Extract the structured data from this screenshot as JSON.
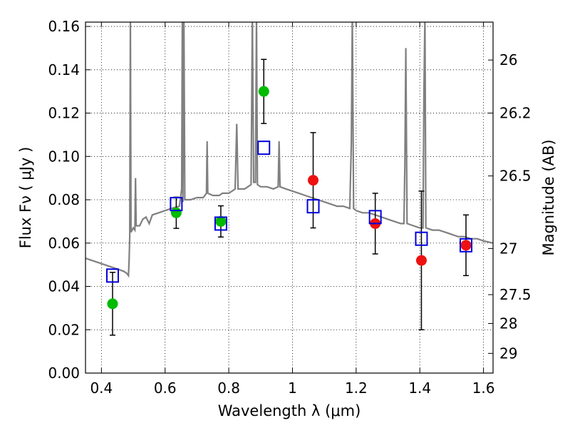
{
  "chart_data": {
    "type": "scatter",
    "title": "",
    "xlabel": "Wavelength  λ (μm)",
    "ylabel": "Flux  Fν  ( μJy )",
    "y2label": "Magnitude (AB)",
    "xlim": [
      0.35,
      1.63
    ],
    "ylim": [
      0.0,
      0.162
    ],
    "grid": true,
    "x_ticks": [
      0.4,
      0.6,
      0.8,
      1.0,
      1.2,
      1.4,
      1.6
    ],
    "x_tick_labels": [
      "0.4",
      "0.6",
      "0.8",
      "1",
      "1.2",
      "1.4",
      "1.6"
    ],
    "y_ticks": [
      0.0,
      0.02,
      0.04,
      0.06,
      0.08,
      0.1,
      0.12,
      0.14,
      0.16
    ],
    "y_tick_labels": [
      "0.00",
      "0.02",
      "0.04",
      "0.06",
      "0.08",
      "0.10",
      "0.12",
      "0.14",
      "0.16"
    ],
    "y2_ticks": [
      {
        "label": "26",
        "flux": 0.1445
      },
      {
        "label": "26.2",
        "flux": 0.12
      },
      {
        "label": "26.5",
        "flux": 0.091
      },
      {
        "label": "27",
        "flux": 0.0575
      },
      {
        "label": "27.5",
        "flux": 0.0362
      },
      {
        "label": "28",
        "flux": 0.0229
      },
      {
        "label": "29",
        "flux": 0.0091
      }
    ],
    "colors": {
      "spectrum": "#808080",
      "green": "#00bb00",
      "red": "#ee1111",
      "model": "#0000dd",
      "errorbar": "#000000"
    },
    "series": [
      {
        "marker": "circle-green",
        "points": [
          {
            "x": 0.435,
            "y": 0.032,
            "err": 0.0145
          },
          {
            "x": 0.635,
            "y": 0.074,
            "err": 0.0072
          },
          {
            "x": 0.775,
            "y": 0.07,
            "err": 0.0072
          },
          {
            "x": 0.91,
            "y": 0.13,
            "err": 0.0148
          }
        ]
      },
      {
        "marker": "circle-red",
        "points": [
          {
            "x": 1.065,
            "y": 0.089,
            "err": 0.022
          },
          {
            "x": 1.26,
            "y": 0.069,
            "err": 0.014
          },
          {
            "x": 1.405,
            "y": 0.052,
            "err": 0.032
          },
          {
            "x": 1.545,
            "y": 0.059,
            "err": 0.014
          }
        ]
      },
      {
        "marker": "square-open-blue",
        "points": [
          {
            "x": 0.435,
            "y": 0.045
          },
          {
            "x": 0.635,
            "y": 0.078
          },
          {
            "x": 0.775,
            "y": 0.069
          },
          {
            "x": 0.91,
            "y": 0.104
          },
          {
            "x": 1.065,
            "y": 0.077
          },
          {
            "x": 1.26,
            "y": 0.072
          },
          {
            "x": 1.405,
            "y": 0.062
          },
          {
            "x": 1.545,
            "y": 0.059
          }
        ]
      }
    ],
    "model_spectrum": [
      [
        0.35,
        0.053
      ],
      [
        0.37,
        0.052
      ],
      [
        0.39,
        0.051
      ],
      [
        0.41,
        0.05
      ],
      [
        0.43,
        0.049
      ],
      [
        0.45,
        0.048
      ],
      [
        0.47,
        0.047
      ],
      [
        0.48,
        0.046
      ],
      [
        0.485,
        0.045
      ],
      [
        0.487,
        0.052
      ],
      [
        0.489,
        0.063
      ],
      [
        0.491,
        0.165
      ],
      [
        0.493,
        0.065
      ],
      [
        0.5,
        0.067
      ],
      [
        0.505,
        0.066
      ],
      [
        0.507,
        0.09
      ],
      [
        0.509,
        0.068
      ],
      [
        0.52,
        0.068
      ],
      [
        0.53,
        0.071
      ],
      [
        0.54,
        0.072
      ],
      [
        0.55,
        0.069
      ],
      [
        0.56,
        0.073
      ],
      [
        0.58,
        0.074
      ],
      [
        0.6,
        0.075
      ],
      [
        0.62,
        0.076
      ],
      [
        0.645,
        0.077
      ],
      [
        0.652,
        0.085
      ],
      [
        0.654,
        0.165
      ],
      [
        0.656,
        0.079
      ],
      [
        0.659,
        0.165
      ],
      [
        0.662,
        0.08
      ],
      [
        0.68,
        0.08
      ],
      [
        0.7,
        0.081
      ],
      [
        0.72,
        0.081
      ],
      [
        0.73,
        0.083
      ],
      [
        0.732,
        0.107
      ],
      [
        0.734,
        0.083
      ],
      [
        0.75,
        0.082
      ],
      [
        0.77,
        0.082
      ],
      [
        0.78,
        0.083
      ],
      [
        0.8,
        0.083
      ],
      [
        0.81,
        0.084
      ],
      [
        0.82,
        0.085
      ],
      [
        0.825,
        0.115
      ],
      [
        0.829,
        0.085
      ],
      [
        0.85,
        0.085
      ],
      [
        0.86,
        0.086
      ],
      [
        0.87,
        0.087
      ],
      [
        0.874,
        0.165
      ],
      [
        0.878,
        0.088
      ],
      [
        0.884,
        0.088
      ],
      [
        0.887,
        0.165
      ],
      [
        0.89,
        0.087
      ],
      [
        0.9,
        0.086
      ],
      [
        0.92,
        0.086
      ],
      [
        0.94,
        0.085
      ],
      [
        0.955,
        0.086
      ],
      [
        0.958,
        0.107
      ],
      [
        0.961,
        0.086
      ],
      [
        0.98,
        0.085
      ],
      [
        1.0,
        0.084
      ],
      [
        1.02,
        0.083
      ],
      [
        1.04,
        0.082
      ],
      [
        1.06,
        0.081
      ],
      [
        1.08,
        0.08
      ],
      [
        1.1,
        0.079
      ],
      [
        1.12,
        0.078
      ],
      [
        1.14,
        0.077
      ],
      [
        1.16,
        0.077
      ],
      [
        1.18,
        0.076
      ],
      [
        1.185,
        0.106
      ],
      [
        1.188,
        0.165
      ],
      [
        1.192,
        0.076
      ],
      [
        1.2,
        0.075
      ],
      [
        1.22,
        0.074
      ],
      [
        1.24,
        0.074
      ],
      [
        1.26,
        0.073
      ],
      [
        1.28,
        0.072
      ],
      [
        1.3,
        0.071
      ],
      [
        1.32,
        0.07
      ],
      [
        1.34,
        0.069
      ],
      [
        1.35,
        0.069
      ],
      [
        1.353,
        0.095
      ],
      [
        1.356,
        0.15
      ],
      [
        1.36,
        0.069
      ],
      [
        1.38,
        0.068
      ],
      [
        1.4,
        0.067
      ],
      [
        1.41,
        0.067
      ],
      [
        1.413,
        0.13
      ],
      [
        1.416,
        0.165
      ],
      [
        1.419,
        0.067
      ],
      [
        1.44,
        0.066
      ],
      [
        1.46,
        0.066
      ],
      [
        1.48,
        0.065
      ],
      [
        1.5,
        0.064
      ],
      [
        1.52,
        0.063
      ],
      [
        1.54,
        0.063
      ],
      [
        1.56,
        0.062
      ],
      [
        1.58,
        0.062
      ],
      [
        1.6,
        0.061
      ],
      [
        1.63,
        0.06
      ]
    ]
  }
}
